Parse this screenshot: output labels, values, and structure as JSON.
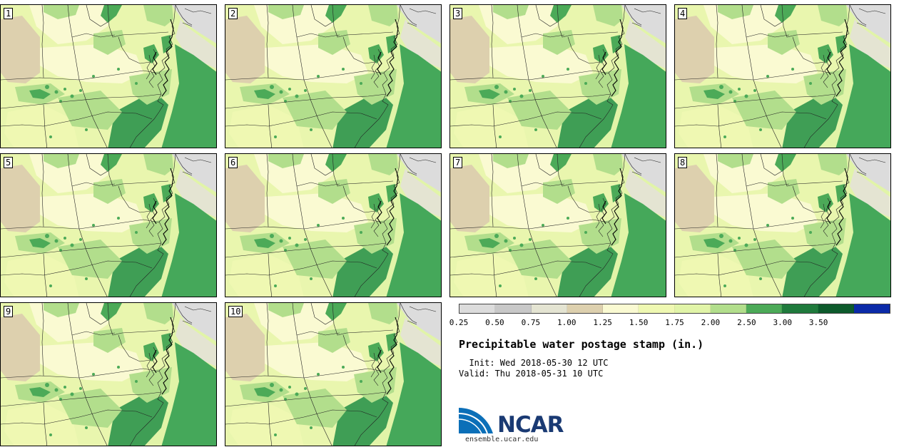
{
  "colors": {
    "c025": "#dcdcdc",
    "c050": "#c8c8c8",
    "c075": "#e4e4d2",
    "c100": "#ddd0ae",
    "c125": "#fafad2",
    "c150": "#eff8b2",
    "c175": "#e1f4a8",
    "c200": "#b2de8c",
    "c250": "#4caa58",
    "c300": "#1f7a3c",
    "c350": "#0d5a2c",
    "c400": "#0b2aa8",
    "ocean": "#45a85a"
  },
  "stamps": [
    {
      "label": "1"
    },
    {
      "label": "2"
    },
    {
      "label": "3"
    },
    {
      "label": "4"
    },
    {
      "label": "5"
    },
    {
      "label": "6"
    },
    {
      "label": "7"
    },
    {
      "label": "8"
    },
    {
      "label": "9"
    },
    {
      "label": "10"
    }
  ],
  "colorbar": {
    "colors": [
      "#dcdcdc",
      "#c8c8c8",
      "#e4e4d2",
      "#ddd0ae",
      "#fafad2",
      "#eff8b2",
      "#e1f4a8",
      "#b2de8c",
      "#4caa58",
      "#1f7a3c",
      "#0d5a2c",
      "#0b2aa8"
    ],
    "ticks": [
      "0.25",
      "0.50",
      "0.75",
      "1.00",
      "1.25",
      "1.50",
      "1.75",
      "2.00",
      "2.50",
      "3.00",
      "3.50"
    ]
  },
  "title": "Precipitable water postage stamp (in.)",
  "init_line": "  Init: Wed 2018-05-30 12 UTC",
  "valid_line": "Valid: Thu 2018-05-31 10 UTC",
  "logo": {
    "name": "NCAR",
    "url": "ensemble.ucar.edu"
  }
}
